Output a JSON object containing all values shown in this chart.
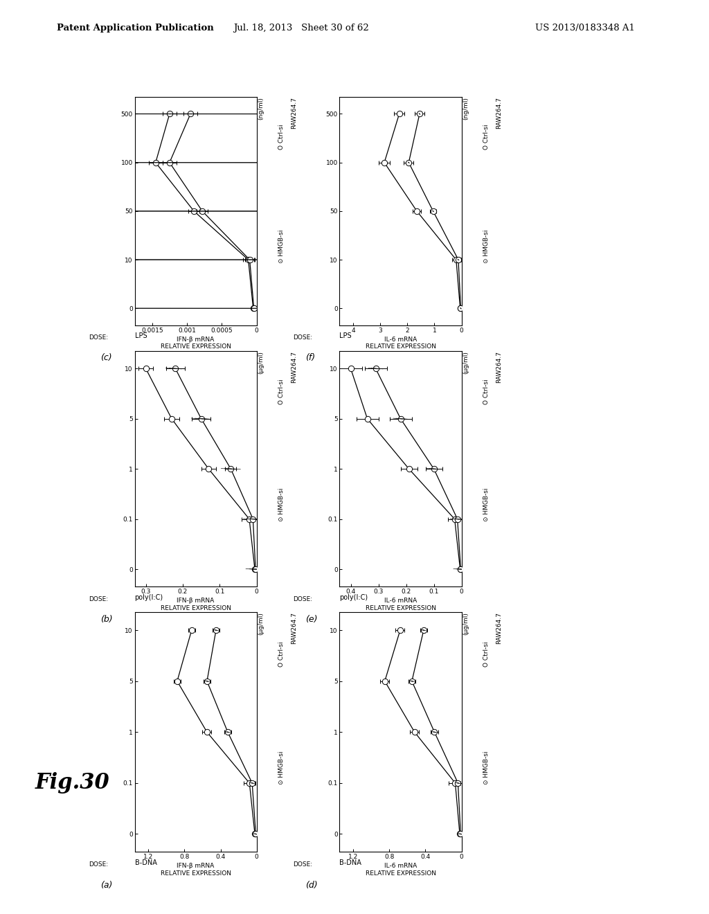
{
  "header_left": "Patent Application Publication",
  "header_mid": "Jul. 18, 2013   Sheet 30 of 62",
  "header_right": "US 2013/0183348 A1",
  "fig_label": "Fig.30",
  "panels": [
    {
      "label": "(a)",
      "ylabel_1": "IFN-β mRNA",
      "ylabel_2": "RELATIVE EXPRESSION",
      "stimulus": "B-DNA",
      "dose_unit": "(μg/ml)",
      "dose_tick_labels": [
        "0",
        "0.1",
        "1",
        "5",
        "10"
      ],
      "dose_positions": [
        0,
        1,
        2,
        3,
        4
      ],
      "expr_ticks": [
        0,
        0.4,
        0.8,
        1.2
      ],
      "expr_lim_max": 1.35,
      "ctrl_expr": [
        0.02,
        0.08,
        0.55,
        0.88,
        0.72
      ],
      "ctrl_err": [
        0.01,
        0.06,
        0.05,
        0.04,
        0.04
      ],
      "hmgb_expr": [
        0.01,
        0.05,
        0.32,
        0.55,
        0.45
      ],
      "hmgb_err": [
        0.01,
        0.04,
        0.04,
        0.04,
        0.04
      ]
    },
    {
      "label": "(b)",
      "ylabel_1": "IFN-β mRNA",
      "ylabel_2": "RELATIVE EXPRESSION",
      "stimulus": "poly(I:C)",
      "dose_unit": "(μg/ml)",
      "dose_tick_labels": [
        "0",
        "0.1",
        "1",
        "5",
        "10"
      ],
      "dose_positions": [
        0,
        1,
        2,
        3,
        4
      ],
      "expr_ticks": [
        0,
        0.1,
        0.2,
        0.3
      ],
      "expr_lim_max": 0.33,
      "ctrl_expr": [
        0.005,
        0.02,
        0.13,
        0.23,
        0.3
      ],
      "ctrl_err": [
        0.003,
        0.02,
        0.02,
        0.02,
        0.02
      ],
      "hmgb_expr": [
        0.003,
        0.01,
        0.07,
        0.15,
        0.22
      ],
      "hmgb_err": [
        0.002,
        0.01,
        0.015,
        0.025,
        0.025
      ]
    },
    {
      "label": "(c)",
      "ylabel_1": "IFN-β mRNA",
      "ylabel_2": "RELATIVE EXPRESSION",
      "stimulus": "LPS",
      "dose_unit": "(ng/ml)",
      "dose_tick_labels": [
        "0",
        "10",
        "50",
        "100",
        "500"
      ],
      "dose_positions": [
        0,
        1,
        2,
        3,
        4
      ],
      "expr_ticks": [
        0,
        0.0005,
        0.001,
        0.0015
      ],
      "expr_lim_max": 0.00175,
      "ctrl_expr": [
        5e-05,
        0.00012,
        0.0009,
        0.00145,
        0.00125
      ],
      "ctrl_err": [
        3e-05,
        8e-05,
        8e-05,
        0.0001,
        0.0001
      ],
      "hmgb_expr": [
        4e-05,
        0.0001,
        0.00078,
        0.00125,
        0.00095
      ],
      "hmgb_err": [
        2e-05,
        7e-05,
        8e-05,
        0.0001,
        0.0001
      ]
    },
    {
      "label": "(d)",
      "ylabel_1": "IL-6 mRNA",
      "ylabel_2": "RELATIVE EXPRESSION",
      "stimulus": "B-DNA",
      "dose_unit": "(μg/ml)",
      "dose_tick_labels": [
        "0",
        "0.1",
        "1",
        "5",
        "10"
      ],
      "dose_positions": [
        0,
        1,
        2,
        3,
        4
      ],
      "expr_ticks": [
        0,
        0.4,
        0.8,
        1.2
      ],
      "expr_lim_max": 1.35,
      "ctrl_expr": [
        0.02,
        0.07,
        0.52,
        0.85,
        0.68
      ],
      "ctrl_err": [
        0.01,
        0.07,
        0.05,
        0.05,
        0.05
      ],
      "hmgb_expr": [
        0.01,
        0.04,
        0.3,
        0.55,
        0.42
      ],
      "hmgb_err": [
        0.01,
        0.03,
        0.04,
        0.04,
        0.04
      ]
    },
    {
      "label": "(e)",
      "ylabel_1": "IL-6 mRNA",
      "ylabel_2": "RELATIVE EXPRESSION",
      "stimulus": "poly(I:C)",
      "dose_unit": "(μg/ml)",
      "dose_tick_labels": [
        "0",
        "0.1",
        "1",
        "5",
        "10"
      ],
      "dose_positions": [
        0,
        1,
        2,
        3,
        4
      ],
      "expr_ticks": [
        0,
        0.1,
        0.2,
        0.3,
        0.4
      ],
      "expr_lim_max": 0.44,
      "ctrl_expr": [
        0.005,
        0.025,
        0.19,
        0.34,
        0.4
      ],
      "ctrl_err": [
        0.003,
        0.025,
        0.03,
        0.04,
        0.04
      ],
      "hmgb_expr": [
        0.003,
        0.015,
        0.1,
        0.22,
        0.31
      ],
      "hmgb_err": [
        0.002,
        0.015,
        0.03,
        0.04,
        0.04
      ]
    },
    {
      "label": "(f)",
      "ylabel_1": "IL-6 mRNA",
      "ylabel_2": "RELATIVE EXPRESSION",
      "stimulus": "LPS",
      "dose_unit": "(ng/ml)",
      "dose_tick_labels": [
        "0",
        "10",
        "50",
        "100",
        "500"
      ],
      "dose_positions": [
        0,
        1,
        2,
        3,
        4
      ],
      "expr_ticks": [
        0,
        1,
        2,
        3,
        4
      ],
      "expr_lim_max": 4.5,
      "ctrl_expr": [
        0.05,
        0.2,
        1.65,
        2.85,
        2.3
      ],
      "ctrl_err": [
        0.03,
        0.15,
        0.15,
        0.2,
        0.2
      ],
      "hmgb_expr": [
        0.03,
        0.12,
        1.05,
        1.95,
        1.55
      ],
      "hmgb_err": [
        0.02,
        0.1,
        0.12,
        0.18,
        0.18
      ]
    }
  ]
}
